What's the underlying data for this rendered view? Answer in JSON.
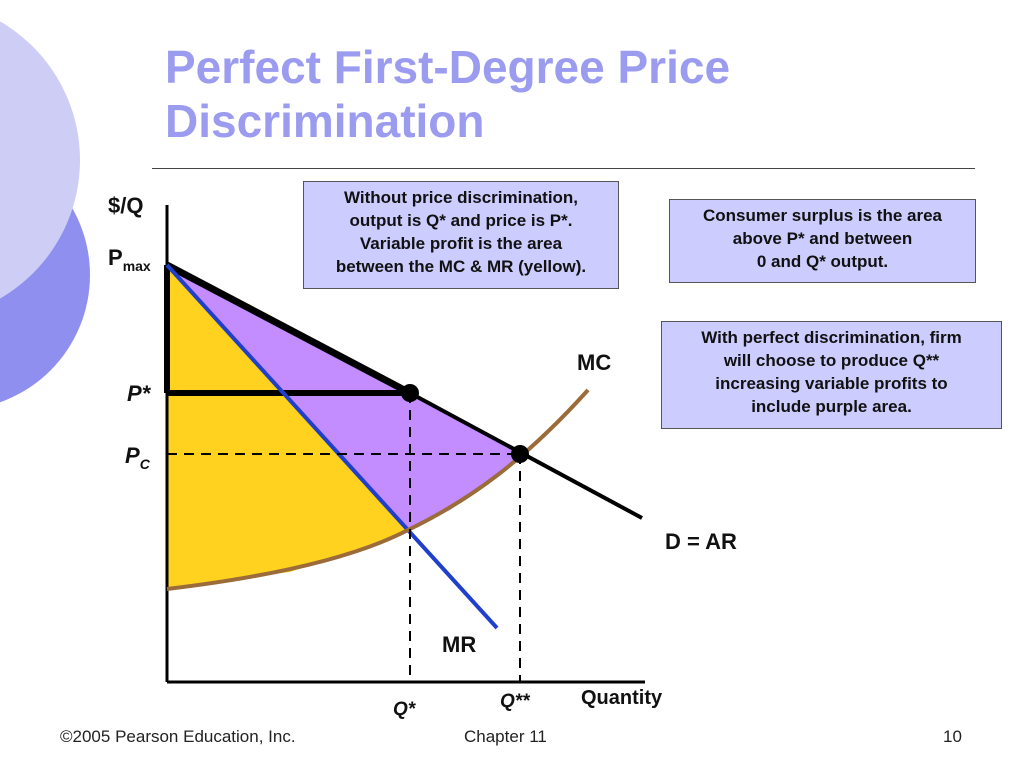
{
  "slide": {
    "title_line1": "Perfect First-Degree Price",
    "title_line2": "Discrimination"
  },
  "notes": {
    "without_discrimination": "Without price discrimination,\noutput is Q* and price is P*.\nVariable profit is the area\nbetween the MC & MR (yellow).",
    "consumer_surplus": "Consumer surplus is the area\nabove P* and between\n0 and Q* output.",
    "perfect_discrimination": "With perfect discrimination, firm\nwill choose to produce Q**\nincreasing variable profits to\ninclude purple area."
  },
  "diagram": {
    "y_axis_label": "$/Q",
    "x_axis_label": "Quantity",
    "pmax_label": "P",
    "pmax_sub": "max",
    "pstar_label": "P*",
    "pc_label": "P",
    "pc_sub": "C",
    "qstar_label": "Q*",
    "qstarstar_label": "Q**",
    "mc_label": "MC",
    "demand_label": "D = AR",
    "mr_label": "MR",
    "colors": {
      "yellow_area": "#ffd21f",
      "purple_area": "#c38cff",
      "mr_line": "#1f3fcc",
      "mc_curve": "#9b6b3a",
      "title": "#9b9bf0",
      "box_fill": "#ccccff"
    }
  },
  "footer": {
    "copyright": "©2005 Pearson Education, Inc.",
    "chapter": "Chapter 11",
    "page": "10"
  }
}
